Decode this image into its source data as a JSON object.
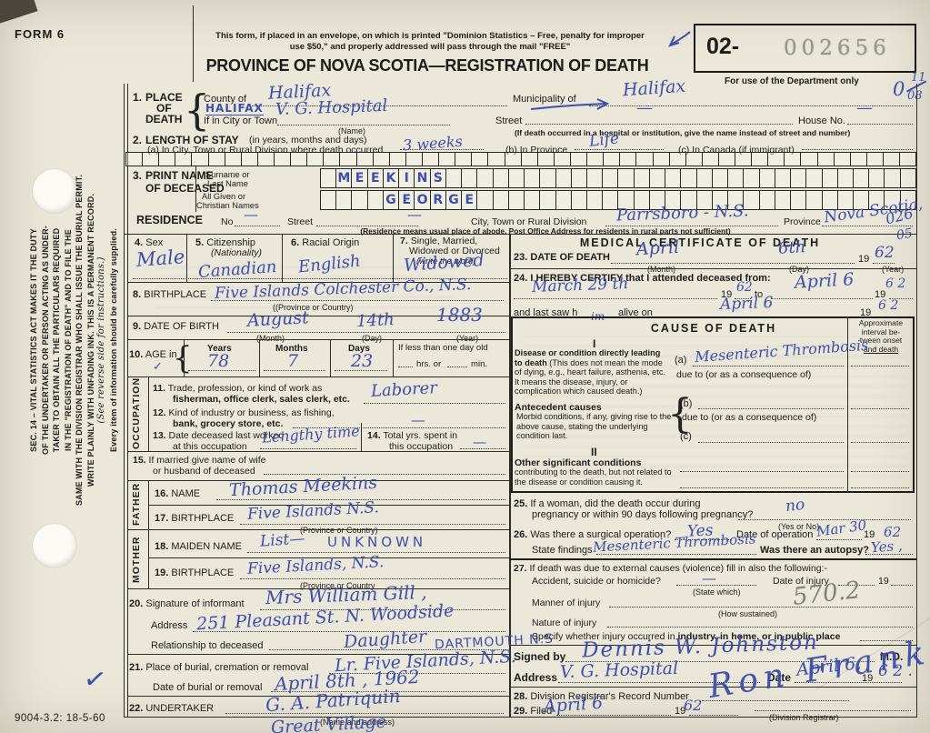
{
  "header": {
    "form_number": "FORM 6",
    "envelope_line1": "This form, if placed in an envelope, on which is printed \"Dominion Statistics – Free, penalty for improper",
    "envelope_line2": "use $50,\" and properly addressed will pass through the mail \"FREE\"",
    "title": "PROVINCE OF NOVA SCOTIA—REGISTRATION OF DEATH",
    "dept_prefix": "02-",
    "dept_serial": "002656",
    "dept_caption": "For use of the Department only"
  },
  "margin": {
    "code0": "0",
    "code11": "11",
    "code08": "08",
    "code026": "026",
    "code05": "05",
    "print_code": "9004-3.2: 18-5-60",
    "check": "✓"
  },
  "sidebar": {
    "l1": "SEC. 14 – VITAL STATISTICS ACT MAKES IT THE DUTY",
    "l2": "OF THE UNDERTAKER OR PERSON ACTING AS UNDER-",
    "l3": "TAKER TO OBTAIN ALL THE PARTICULARS REQUIRED",
    "l4": "IN THE \"REGISTRATION OF DEATH\" AND TO FILE THE",
    "l5": "SAME WITH THE DIVISION REGISTRAR WHO SHALL ISSUE THE BURIAL PERMIT.",
    "l6": "WRITE PLAINLY WITH UNFADING INK. THIS IS A PERMANENT RECORD.",
    "l7": "(See reverse side for instructions.)",
    "l8": "Every item of information should be carefully supplied."
  },
  "q1": {
    "no": "1.",
    "t1": "PLACE",
    "t2": "OF",
    "t3": "DEATH",
    "county_label": "County of",
    "county_value": "Halifax",
    "municipality_label": "Municipality of",
    "municipality_value": "Halifax",
    "city_label": "If in City or Town",
    "city_caps": "HALIFAX",
    "city_value": "V. G. Hospital",
    "name_note": "(Name)",
    "street_label": "Street",
    "street_dash": "—",
    "house_label": "House No.",
    "house_dash": "—",
    "note": "(If death occurred in a hospital or institution, give the name instead of street and number)"
  },
  "q2": {
    "no": "2.",
    "label": "LENGTH OF STAY",
    "sub": "(in years, months and days)",
    "a_label": "(a) In City, Town or Rural Division where death occurred",
    "a_value": "3 weeks",
    "b_label": "(b) In Province",
    "b_value": "Life",
    "c_label": "(c) In Canada (if immigrant)"
  },
  "q3": {
    "no": "3.",
    "t1": "PRINT NAME",
    "t2": "OF DECEASED",
    "surname1": "Surname or",
    "surname2": "Last Name",
    "given1": "All Given or",
    "given2": "Christian Names"
  },
  "boxes": {
    "coding": {
      "count": 48,
      "letters": []
    },
    "surname": {
      "count": 38,
      "letters": [
        "",
        "M",
        "E",
        "E",
        "K",
        "I",
        "N",
        "S"
      ]
    },
    "given": {
      "count": 38,
      "letters": [
        "",
        "",
        "",
        "",
        "G",
        "E",
        "O",
        "R",
        "G",
        "E"
      ]
    }
  },
  "residence": {
    "label": "RESIDENCE",
    "no_label": "No",
    "no_dash": "—",
    "street_label": "Street",
    "street_dash": "—",
    "city_label": "City, Town or Rural Division",
    "city_value": "Parrsboro - N.S.",
    "province_label": "Province",
    "province_value": "Nova Scotia,",
    "note": "(Residence means usual place of abode. Post Office Address for residents in rural parts not sufficient)"
  },
  "q4": {
    "no": "4.",
    "label": "Sex",
    "value": "Male"
  },
  "q5": {
    "no": "5.",
    "label": "Citizenship",
    "sub": "(Nationality)",
    "value": "Canadian"
  },
  "q6": {
    "no": "6.",
    "label": "Racial Origin",
    "value": "English"
  },
  "q7": {
    "no": "7.",
    "l1": "Single, Married,",
    "l2": "Widowed or Divorced",
    "l3": "(write the word)",
    "value": "Widowed"
  },
  "q8": {
    "no": "8.",
    "label": "BIRTHPLACE",
    "value": "Five Islands  Colchester Co., N.S.",
    "note": "((Province or Country)"
  },
  "q9": {
    "no": "9.",
    "label": "DATE OF BIRTH",
    "month": "August",
    "day": "14th",
    "year": "1883",
    "month_note": "(Month)",
    "day_note": "(Day)",
    "year_note": "(Year)"
  },
  "q10": {
    "no": "10.",
    "label": "AGE in",
    "years_h": "Years",
    "months_h": "Months",
    "days_h": "Days",
    "years": "78",
    "months": "7",
    "days": "23",
    "less1": "If less than one day old",
    "less2": "hrs. or",
    "less3": "min."
  },
  "occ_label": "OCCUPATION",
  "father_label": "FATHER",
  "mother_label": "MOTHER",
  "q11": {
    "no": "11.",
    "l1": "Trade, profession, or kind of work as",
    "l2": "fisherman, office clerk, sales clerk, etc.",
    "value": "Laborer"
  },
  "q12": {
    "no": "12.",
    "l1": "Kind of industry or business, as fishing,",
    "l2": "bank, grocery store, etc.",
    "dash": "—"
  },
  "q13": {
    "no": "13.",
    "l1": "Date deceased last worked",
    "l2": "at this occupation",
    "value": "Lengthy time"
  },
  "q14": {
    "no": "14.",
    "l1": "Total yrs. spent in",
    "l2": "this occupation",
    "dash": "—"
  },
  "q15": {
    "no": "15.",
    "l1": "If married give name of wife",
    "l2": "or husband of deceased"
  },
  "q16": {
    "no": "16.",
    "label": "NAME",
    "value": "Thomas Meekins"
  },
  "q17": {
    "no": "17.",
    "label": "BIRTHPLACE",
    "value": "Five Islands   N.S.",
    "note": "(Province or Country)"
  },
  "q18": {
    "no": "18.",
    "label": "MAIDEN NAME",
    "value": "List—",
    "value2": "UNKNOWN"
  },
  "q19": {
    "no": "19.",
    "label": "BIRTHPLACE",
    "value": "Five Islands, N.S.",
    "note": "(Province or Country"
  },
  "q20": {
    "no": "20.",
    "label": "Signature of informant",
    "value": "Mrs William Gill ,",
    "address_label": "Address",
    "address_value": "251 Pleasant St.  N. Woodside",
    "rel_label": "Relationship to deceased",
    "rel_value": "Daughter",
    "rel_value2": "DARTMOUTH N.S"
  },
  "q21": {
    "no": "21.",
    "label": "Place of burial, cremation or removal",
    "value": "Lr. Five Islands, N.S.",
    "date_label": "Date of burial or removal",
    "date_value": "April 8th ,  1962"
  },
  "q22": {
    "no": "22.",
    "label": "UNDERTAKER",
    "value": "G. A. Patriquin",
    "note": "(Name and address)",
    "value2": "Great Village"
  },
  "med": {
    "title": "MEDICAL CERTIFICATE OF DEATH"
  },
  "q23": {
    "no": "23.",
    "label": "DATE OF DEATH",
    "month": "April",
    "day": "6th",
    "y19": "19",
    "year": "62",
    "month_note": "(Month)",
    "day_note": "(Day)",
    "year_note": "(Year)"
  },
  "q24": {
    "no": "24.",
    "label": "I HEREBY CERTIFY that I attended deceased from:",
    "from": "March   29 th",
    "y19a": "19",
    "ya": "62",
    "to": "to",
    "to_value": "April 6",
    "y19b": "19",
    "yb": "6 2",
    "last1": "and last saw h",
    "last_hw": "im",
    "last2": "alive on",
    "last_value": "April   6",
    "y19c": "19",
    "yc": "6 2"
  },
  "cause": {
    "title": "CAUSE OF DEATH",
    "i1": "I",
    "i2": "II",
    "int1": "Approximate",
    "int2": "interval be-",
    "int3": "tween onset",
    "int4": "and death",
    "disease_bold": "Disease or condition directly leading to death ",
    "disease_rest": "(This does not mean the mode of dying, e.g., heart failure, asthenia, etc. It means the disease, injury, or complication which caused death.)",
    "a": "(a)",
    "b": "(b)",
    "c": "(c)",
    "due_a": "due to (or as a consequence of)",
    "due_b": "due to (or as a consequence of)",
    "a_value": "Mesenteric Thrombosis .",
    "ant_bold": "Antecedent causes",
    "ant_rest": "Morbid conditions, if any, giving rise to the above cause, stating the underlying condition last.",
    "other_bold": "Other significant conditions",
    "other_rest": "contributing to the death, but not related to the disease or condition causing it."
  },
  "q25": {
    "no": "25.",
    "l1": "If a woman, did the death occur during",
    "l2": "pregnancy or within 90 days following pregnancy?",
    "value": "no",
    "note": "(Yes or No)"
  },
  "q26": {
    "no": "26.",
    "label": "Was there a surgical operation?",
    "value": "Yes",
    "date_label": "Date of operation",
    "date_value": "Mar 30",
    "y19": "19",
    "year": "62",
    "findings_label": "State findings",
    "findings_value": "Mesenteric Thrombosis",
    "autopsy_label": "Was there an autopsy?",
    "autopsy_value": "Yes ,"
  },
  "q27": {
    "no": "27.",
    "label": "If death was due to external causes (violence) fill in also the following:-",
    "accident_label": "Accident, suicide or homicide?",
    "dash": "—",
    "state_which": "(State which)",
    "date_label": "Date of injury",
    "y19": "19",
    "manner_label": "Manner of injury",
    "manner_code": "570.2",
    "how": "(How sustained)",
    "specify1": "Specify whether injury occurred in ",
    "specify2": "industry, in home, or in public place",
    "nature_label": "Nature of injury"
  },
  "signed": {
    "label": "Signed by",
    "signature": "Dennis  W. Johnston",
    "md": "M.D.",
    "address_label": "Address",
    "address_value": "V. G.  Hospital",
    "date_label": "Date",
    "date_value": "April 6,",
    "y19": "19",
    "year": "6 2 ."
  },
  "q28": {
    "no": "28.",
    "label": "Division Registrar's Record Number"
  },
  "q29": {
    "no": "29.",
    "label": "Filed",
    "value": "April 6",
    "y19": "19",
    "year": "62",
    "note": "(Division Registrar)",
    "signature": "Ron Frank"
  }
}
